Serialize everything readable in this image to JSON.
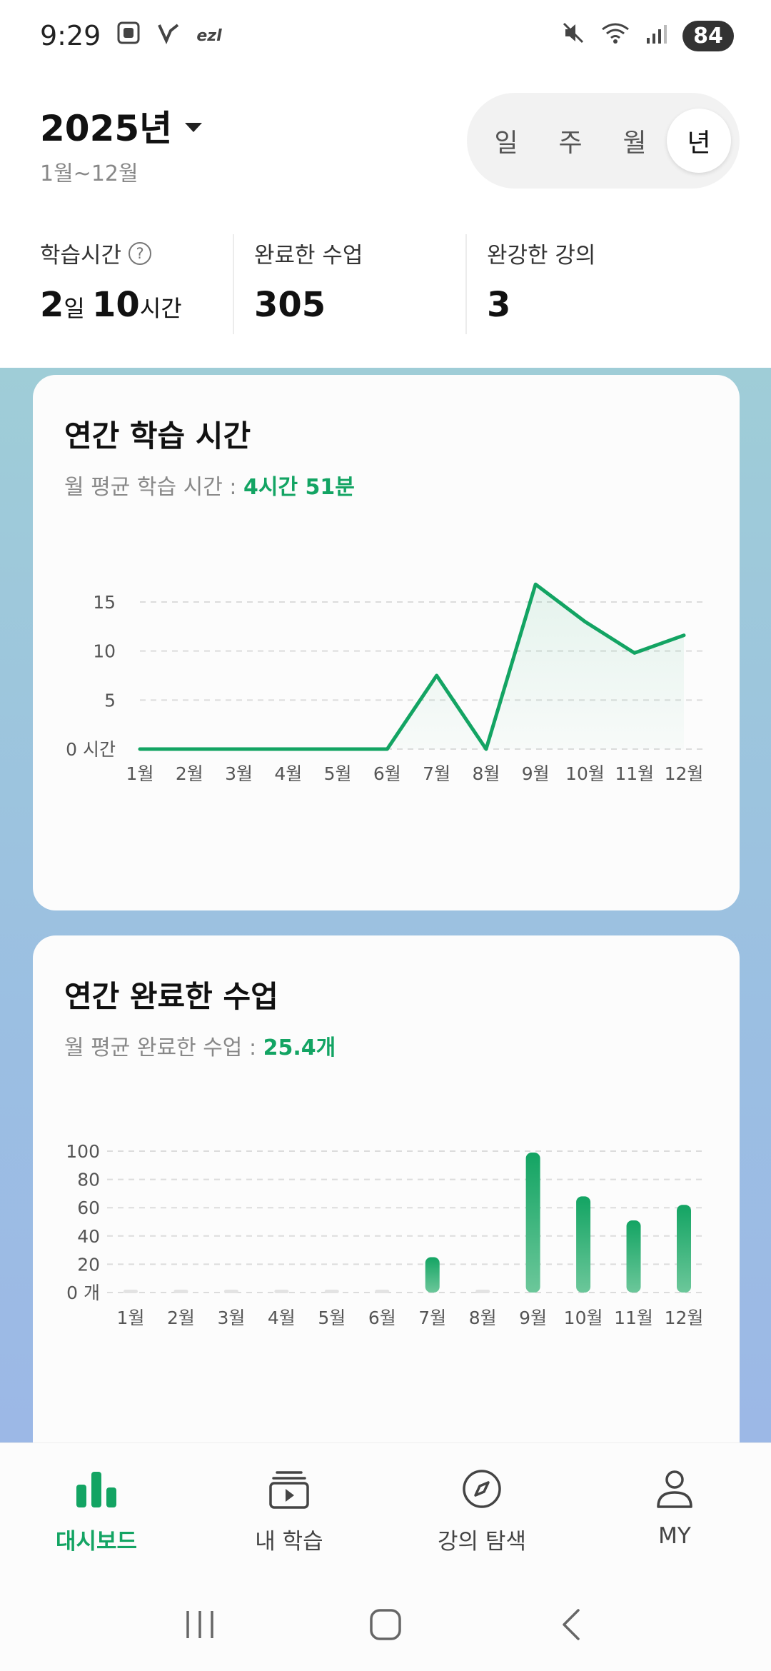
{
  "status": {
    "time": "9:29",
    "ezl": "ezl",
    "battery": "84"
  },
  "header": {
    "year": "2025년",
    "range": "1월~12월",
    "periods": [
      "일",
      "주",
      "월",
      "년"
    ],
    "active_period": "년"
  },
  "stats": [
    {
      "label": "학습시간",
      "value_parts": [
        "2",
        "일 ",
        "10",
        "시간"
      ]
    },
    {
      "label": "완료한 수업",
      "value": "305"
    },
    {
      "label": "완강한 강의",
      "value": "3"
    }
  ],
  "study_card": {
    "title": "연간 학습 시간",
    "subtitle_prefix": "월 평균 학습 시간 : ",
    "subtitle_value": "4시간 51분"
  },
  "lessons_card": {
    "title": "연간 완료한 수업",
    "subtitle_prefix": "월 평균 완료한 수업 : ",
    "subtitle_value": "25.4개"
  },
  "chart_data": [
    {
      "type": "area",
      "title": "연간 학습 시간",
      "categories": [
        "1월",
        "2월",
        "3월",
        "4월",
        "5월",
        "6월",
        "7월",
        "8월",
        "9월",
        "10월",
        "11월",
        "12월"
      ],
      "values": [
        0,
        0,
        0,
        0,
        0,
        0,
        7.5,
        0,
        16.8,
        13,
        9.8,
        11.6
      ],
      "y_ticks": [
        "0 시간",
        "5",
        "10",
        "15"
      ],
      "ylim": [
        0,
        15
      ],
      "grid": true,
      "color": "#13a463"
    },
    {
      "type": "bar",
      "title": "연간 완료한 수업",
      "categories": [
        "1월",
        "2월",
        "3월",
        "4월",
        "5월",
        "6월",
        "7월",
        "8월",
        "9월",
        "10월",
        "11월",
        "12월"
      ],
      "values": [
        0,
        0,
        0,
        0,
        0,
        0,
        25,
        0,
        99,
        68,
        51,
        62
      ],
      "y_ticks": [
        "0 개",
        "20",
        "40",
        "60",
        "80",
        "100"
      ],
      "ylim": [
        0,
        100
      ],
      "grid": true,
      "color": "#13a463"
    }
  ],
  "bottom_nav": [
    {
      "label": "대시보드",
      "icon": "bar-chart-icon",
      "active": true
    },
    {
      "label": "내 학습",
      "icon": "play-stack-icon",
      "active": false
    },
    {
      "label": "강의 탐색",
      "icon": "compass-icon",
      "active": false
    },
    {
      "label": "MY",
      "icon": "person-icon",
      "active": false
    }
  ]
}
